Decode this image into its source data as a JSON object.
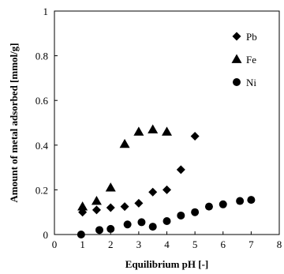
{
  "chart_data": {
    "type": "scatter",
    "title": "",
    "xlabel": "Equilibrium pH [-]",
    "ylabel": "Amount of metal adsorbed [mmol/g]",
    "xlim": [
      0,
      8
    ],
    "ylim": [
      0,
      1
    ],
    "x_ticks": [
      "0",
      "1",
      "2",
      "3",
      "4",
      "5",
      "6",
      "7",
      "8"
    ],
    "y_ticks": [
      "0",
      "0.2",
      "0.4",
      "0.6",
      "0.8",
      "1"
    ],
    "grid": false,
    "legend_position": "top-right",
    "series": [
      {
        "name": "Pb",
        "marker": "diamond",
        "color": "#000000",
        "points": [
          [
            1.0,
            0.1
          ],
          [
            1.5,
            0.11
          ],
          [
            2.0,
            0.12
          ],
          [
            2.5,
            0.125
          ],
          [
            3.0,
            0.14
          ],
          [
            3.5,
            0.19
          ],
          [
            4.0,
            0.2
          ],
          [
            4.5,
            0.29
          ],
          [
            5.0,
            0.44
          ]
        ]
      },
      {
        "name": "Fe",
        "marker": "triangle",
        "color": "#000000",
        "points": [
          [
            1.0,
            0.125
          ],
          [
            1.5,
            0.15
          ],
          [
            2.0,
            0.21
          ],
          [
            2.5,
            0.405
          ],
          [
            3.0,
            0.46
          ],
          [
            3.5,
            0.47
          ],
          [
            4.0,
            0.46
          ]
        ]
      },
      {
        "name": "Ni",
        "marker": "circle",
        "color": "#000000",
        "points": [
          [
            0.95,
            0.0
          ],
          [
            1.6,
            0.02
          ],
          [
            2.0,
            0.025
          ],
          [
            2.6,
            0.045
          ],
          [
            3.1,
            0.055
          ],
          [
            3.5,
            0.035
          ],
          [
            4.0,
            0.06
          ],
          [
            4.5,
            0.085
          ],
          [
            5.0,
            0.1
          ],
          [
            5.5,
            0.125
          ],
          [
            6.0,
            0.135
          ],
          [
            6.6,
            0.15
          ],
          [
            7.0,
            0.155
          ]
        ]
      }
    ]
  }
}
